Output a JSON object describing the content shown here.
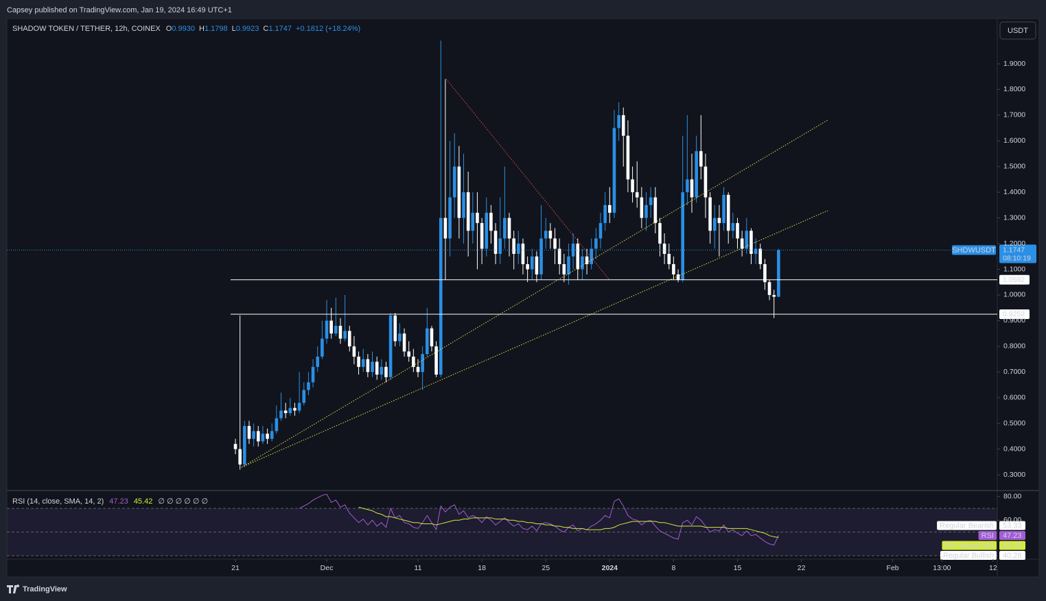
{
  "header": {
    "publisher": "Capsey published on TradingView.com, Jan 19, 2024 16:49 UTC+1"
  },
  "footer": {
    "brand": "TradingView"
  },
  "chart_data": [
    {
      "type": "candlestick",
      "title": "SHADOW TOKEN / TETHER, 12h, COINEX",
      "symbol": "SHDWUSDT",
      "currency": "USDT",
      "legend": [
        {
          "key": "O",
          "value": "0.9930"
        },
        {
          "key": "H",
          "value": "1.1798"
        },
        {
          "key": "L",
          "value": "0.9923"
        },
        {
          "key": "C",
          "value": "1.1747"
        }
      ],
      "change": "+0.1812 (+18.24%)",
      "up_color": "#2a8fe6",
      "down_color": "#ffffff",
      "last_price": 1.1747,
      "countdown": "08:10:19",
      "levels": [
        1.0592,
        0.9252
      ],
      "xlim": [
        -25.04,
        83.46
      ],
      "xticks": [
        {
          "value": 0,
          "label": "21"
        },
        {
          "value": 10,
          "label": "Dec"
        },
        {
          "value": 20,
          "label": "11"
        },
        {
          "value": 27,
          "label": "18"
        },
        {
          "value": 34,
          "label": "25"
        },
        {
          "value": 41,
          "label": "2024"
        },
        {
          "value": 48,
          "label": "8"
        },
        {
          "value": 55,
          "label": "15"
        },
        {
          "value": 62,
          "label": "22"
        },
        {
          "value": 72,
          "label": "Feb"
        },
        {
          "value": 77.4,
          "label": "13:00"
        },
        {
          "value": 83,
          "label": "12"
        }
      ],
      "ylim": [
        0.2413,
        2.0736
      ],
      "yticks": [
        {
          "value": 0.3,
          "label": "0.3000"
        },
        {
          "value": 0.4,
          "label": "0.4000"
        },
        {
          "value": 0.5,
          "label": "0.5000"
        },
        {
          "value": 0.6,
          "label": "0.6000"
        },
        {
          "value": 0.7,
          "label": "0.7000"
        },
        {
          "value": 0.8,
          "label": "0.8000"
        },
        {
          "value": 0.9,
          "label": "0.9000"
        },
        {
          "value": 1.0,
          "label": "1.0000"
        },
        {
          "value": 1.1,
          "label": "1.1000"
        },
        {
          "value": 1.2,
          "label": "1.2000"
        },
        {
          "value": 1.3,
          "label": "1.3000"
        },
        {
          "value": 1.4,
          "label": "1.4000"
        },
        {
          "value": 1.5,
          "label": "1.5000"
        },
        {
          "value": 1.6,
          "label": "1.6000"
        },
        {
          "value": 1.7,
          "label": "1.7000"
        },
        {
          "value": 1.8,
          "label": "1.8000"
        },
        {
          "value": 1.9,
          "label": "1.9000"
        }
      ],
      "x": [
        0,
        0.5,
        1,
        1.5,
        2,
        2.5,
        3,
        3.5,
        4,
        4.5,
        5,
        5.5,
        6,
        6.5,
        7,
        7.5,
        8,
        8.5,
        9,
        9.5,
        10,
        10.5,
        11,
        11.5,
        12,
        12.5,
        13,
        13.5,
        14,
        14.5,
        15,
        15.5,
        16,
        16.5,
        17,
        17.5,
        18,
        18.5,
        19,
        19.5,
        20,
        20.5,
        21,
        21.5,
        22,
        22.5,
        23,
        23.5,
        24,
        24.5,
        25,
        25.5,
        26,
        26.5,
        27,
        27.5,
        28,
        28.5,
        29,
        29.5,
        30,
        30.5,
        31,
        31.5,
        32,
        32.5,
        33,
        33.5,
        34,
        34.5,
        35,
        35.5,
        36,
        36.5,
        37,
        37.5,
        38,
        38.5,
        39,
        39.5,
        40,
        40.5,
        41,
        41.5,
        42,
        42.5,
        43,
        43.5,
        44,
        44.5,
        45,
        45.5,
        46,
        46.5,
        47,
        47.5,
        48,
        48.5,
        49,
        49.5,
        50,
        50.5,
        51,
        51.5,
        52,
        52.5,
        53,
        53.5,
        54,
        54.5,
        55,
        55.5,
        56,
        56.5,
        57,
        57.5,
        58,
        58.5,
        59,
        59.5
      ],
      "open": [
        0.42,
        0.4,
        0.34,
        0.49,
        0.44,
        0.47,
        0.43,
        0.46,
        0.44,
        0.47,
        0.52,
        0.55,
        0.54,
        0.56,
        0.55,
        0.58,
        0.63,
        0.66,
        0.72,
        0.76,
        0.83,
        0.9,
        0.85,
        0.88,
        0.83,
        0.86,
        0.8,
        0.76,
        0.72,
        0.75,
        0.7,
        0.74,
        0.69,
        0.72,
        0.68,
        0.92,
        0.82,
        0.85,
        0.78,
        0.76,
        0.72,
        0.7,
        0.77,
        0.87,
        0.8,
        0.69,
        1.3,
        1.22,
        1.38,
        1.5,
        1.3,
        1.4,
        1.25,
        1.32,
        1.28,
        1.18,
        1.32,
        1.25,
        1.16,
        1.22,
        1.3,
        1.22,
        1.16,
        1.2,
        1.12,
        1.1,
        1.15,
        1.08,
        1.22,
        1.25,
        1.22,
        1.18,
        1.12,
        1.08,
        1.15,
        1.2,
        1.1,
        1.15,
        1.12,
        1.18,
        1.22,
        1.28,
        1.35,
        1.32,
        1.65,
        1.7,
        1.62,
        1.45,
        1.4,
        1.38,
        1.3,
        1.35,
        1.38,
        1.28,
        1.2,
        1.16,
        1.12,
        1.08,
        1.06,
        1.4,
        1.45,
        1.38,
        1.56,
        1.5,
        1.38,
        1.25,
        1.3,
        1.28,
        1.39,
        1.25,
        1.28,
        1.22,
        1.18,
        1.25,
        1.16,
        1.18,
        1.12,
        1.05,
        1.0,
        0.993
      ],
      "high": [
        0.44,
        0.92,
        0.51,
        0.51,
        0.5,
        0.49,
        0.49,
        0.48,
        0.5,
        0.57,
        0.62,
        0.58,
        0.6,
        0.58,
        0.7,
        0.66,
        0.7,
        0.75,
        0.8,
        0.9,
        0.98,
        0.95,
        0.99,
        0.91,
        1.0,
        0.88,
        0.84,
        0.78,
        0.79,
        0.77,
        0.78,
        0.76,
        0.75,
        0.74,
        0.93,
        0.93,
        0.89,
        0.87,
        0.82,
        0.79,
        0.75,
        0.8,
        0.95,
        0.88,
        0.82,
        1.99,
        1.84,
        1.6,
        1.63,
        1.58,
        1.55,
        1.48,
        1.4,
        1.4,
        1.3,
        1.38,
        1.35,
        1.28,
        1.38,
        1.5,
        1.32,
        1.25,
        1.25,
        1.22,
        1.15,
        1.18,
        1.17,
        1.35,
        1.3,
        1.28,
        1.26,
        1.22,
        1.16,
        1.2,
        1.24,
        1.22,
        1.18,
        1.18,
        1.22,
        1.26,
        1.32,
        1.4,
        1.42,
        1.72,
        1.75,
        1.73,
        1.68,
        1.5,
        1.52,
        1.42,
        1.4,
        1.42,
        1.42,
        1.3,
        1.24,
        1.2,
        1.15,
        1.1,
        1.62,
        1.7,
        1.55,
        1.62,
        1.7,
        1.55,
        1.4,
        1.35,
        1.35,
        1.42,
        1.4,
        1.32,
        1.3,
        1.25,
        1.3,
        1.26,
        1.22,
        1.2,
        1.14,
        1.06,
        1.02,
        1.1798
      ],
      "low": [
        0.38,
        0.32,
        0.33,
        0.42,
        0.41,
        0.41,
        0.42,
        0.42,
        0.43,
        0.46,
        0.51,
        0.52,
        0.53,
        0.53,
        0.54,
        0.57,
        0.61,
        0.64,
        0.7,
        0.75,
        0.81,
        0.83,
        0.84,
        0.81,
        0.82,
        0.78,
        0.73,
        0.69,
        0.7,
        0.68,
        0.68,
        0.67,
        0.67,
        0.66,
        0.67,
        0.8,
        0.8,
        0.76,
        0.74,
        0.7,
        0.68,
        0.63,
        0.76,
        0.78,
        0.68,
        0.68,
        1.06,
        1.15,
        1.3,
        1.22,
        1.2,
        1.15,
        1.2,
        1.1,
        1.12,
        1.15,
        1.2,
        1.12,
        1.12,
        1.18,
        1.15,
        1.1,
        1.12,
        1.08,
        1.05,
        1.06,
        1.05,
        1.06,
        1.18,
        1.18,
        1.12,
        1.08,
        1.05,
        1.04,
        1.1,
        1.06,
        1.06,
        1.08,
        1.1,
        1.14,
        1.18,
        1.25,
        1.28,
        1.3,
        1.6,
        1.5,
        1.4,
        1.36,
        1.34,
        1.26,
        1.25,
        1.3,
        1.24,
        1.15,
        1.12,
        1.1,
        1.06,
        1.05,
        1.05,
        1.35,
        1.32,
        1.36,
        1.45,
        1.3,
        1.2,
        1.18,
        1.15,
        1.25,
        1.2,
        1.22,
        1.18,
        1.15,
        1.16,
        1.12,
        1.12,
        1.1,
        1.02,
        0.98,
        0.91,
        0.9923
      ],
      "close": [
        0.4,
        0.34,
        0.49,
        0.44,
        0.47,
        0.43,
        0.46,
        0.44,
        0.47,
        0.52,
        0.55,
        0.54,
        0.56,
        0.55,
        0.58,
        0.63,
        0.66,
        0.72,
        0.76,
        0.83,
        0.9,
        0.85,
        0.88,
        0.83,
        0.86,
        0.8,
        0.76,
        0.72,
        0.75,
        0.7,
        0.74,
        0.69,
        0.72,
        0.68,
        0.92,
        0.82,
        0.85,
        0.78,
        0.76,
        0.72,
        0.7,
        0.77,
        0.87,
        0.8,
        0.69,
        1.3,
        1.22,
        1.38,
        1.5,
        1.3,
        1.4,
        1.25,
        1.32,
        1.28,
        1.18,
        1.32,
        1.25,
        1.16,
        1.22,
        1.3,
        1.22,
        1.16,
        1.2,
        1.12,
        1.1,
        1.15,
        1.08,
        1.22,
        1.25,
        1.22,
        1.18,
        1.12,
        1.08,
        1.15,
        1.2,
        1.1,
        1.15,
        1.12,
        1.18,
        1.22,
        1.28,
        1.35,
        1.32,
        1.65,
        1.7,
        1.62,
        1.45,
        1.4,
        1.38,
        1.3,
        1.35,
        1.38,
        1.28,
        1.2,
        1.16,
        1.12,
        1.08,
        1.06,
        1.4,
        1.45,
        1.38,
        1.56,
        1.5,
        1.38,
        1.25,
        1.3,
        1.28,
        1.39,
        1.25,
        1.28,
        1.22,
        1.18,
        1.25,
        1.16,
        1.18,
        1.12,
        1.05,
        1.0,
        0.993,
        1.1747
      ]
    },
    {
      "type": "line",
      "title": "RSI (14, close, SMA, 14, 2)",
      "indicators": "∅ ∅ ∅ ∅ ∅ ∅",
      "ylim": [
        27.7,
        84.5
      ],
      "yticks": [
        {
          "value": 80,
          "label": "80.00"
        },
        {
          "value": 60,
          "label": "60.00"
        }
      ],
      "bands": [
        70,
        50,
        30
      ],
      "markers": [
        {
          "name": "Regular Bearish",
          "value": 53.33
        },
        {
          "name": "Regular Bullish",
          "value": 40.26
        }
      ],
      "series": [
        {
          "name": "RSI",
          "color": "#a35cd6",
          "values": [
            null,
            null,
            null,
            null,
            null,
            null,
            null,
            null,
            null,
            null,
            null,
            null,
            null,
            null,
            70,
            72,
            74,
            77,
            79,
            81,
            82,
            75,
            77,
            71,
            73,
            66,
            62,
            58,
            61,
            56,
            60,
            55,
            58,
            54,
            70,
            62,
            64,
            58,
            57,
            54,
            53,
            58,
            64,
            58,
            52,
            72,
            67,
            71,
            73,
            65,
            68,
            62,
            64,
            62,
            58,
            63,
            60,
            56,
            59,
            62,
            58,
            55,
            57,
            53,
            52,
            55,
            51,
            57,
            58,
            57,
            55,
            52,
            50,
            54,
            56,
            51,
            53,
            52,
            55,
            57,
            60,
            64,
            62,
            76,
            78,
            72,
            64,
            61,
            60,
            56,
            59,
            60,
            55,
            51,
            49,
            47,
            45,
            44,
            58,
            60,
            56,
            63,
            60,
            55,
            50,
            52,
            51,
            56,
            50,
            52,
            49,
            47,
            51,
            47,
            48,
            45,
            42,
            40,
            39,
            47.23
          ]
        },
        {
          "name": "RSI-based MA",
          "color": "#d4ea3b",
          "values": [
            null,
            null,
            null,
            null,
            null,
            null,
            null,
            null,
            null,
            null,
            null,
            null,
            null,
            null,
            null,
            null,
            null,
            null,
            null,
            null,
            null,
            null,
            null,
            null,
            null,
            null,
            null,
            71,
            70,
            69,
            68,
            66,
            65,
            63,
            63,
            62,
            61,
            60,
            59,
            58,
            58,
            57,
            57,
            57,
            56,
            57,
            58,
            59,
            60,
            60,
            61,
            61,
            62,
            62,
            62,
            62,
            62,
            61,
            61,
            61,
            60,
            60,
            59,
            59,
            58,
            58,
            57,
            57,
            56,
            56,
            55,
            55,
            54,
            54,
            53,
            53,
            53,
            52,
            52,
            52,
            52,
            53,
            53,
            54,
            56,
            57,
            58,
            59,
            59,
            59,
            59,
            59,
            59,
            58,
            58,
            57,
            56,
            55,
            55,
            55,
            55,
            55,
            55,
            54,
            54,
            54,
            54,
            54,
            53,
            53,
            53,
            53,
            53,
            52,
            51,
            50,
            49,
            47,
            46,
            45.42
          ]
        }
      ]
    }
  ]
}
